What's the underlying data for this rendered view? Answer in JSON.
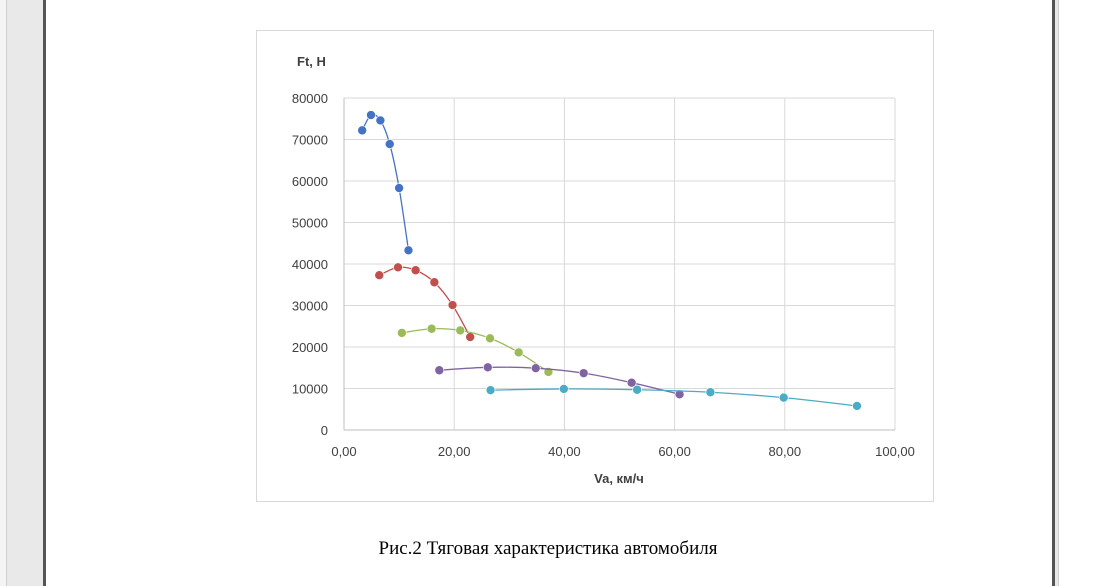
{
  "caption": "Рис.2 Тяговая характеристика автомобиля",
  "chart_data": {
    "type": "scatter",
    "ylabel": "Ft, Н",
    "xlabel": "Va, км/ч",
    "xlim": [
      0,
      100
    ],
    "ylim": [
      0,
      80000
    ],
    "x_ticks": [
      "0,00",
      "20,00",
      "40,00",
      "60,00",
      "80,00",
      "100,00"
    ],
    "y_ticks": [
      "0",
      "10000",
      "20000",
      "30000",
      "40000",
      "50000",
      "60000",
      "70000",
      "80000"
    ],
    "grid": true,
    "legend": "none",
    "series": [
      {
        "color": "#4472C4",
        "x": [
          3.3,
          4.9,
          6.6,
          8.3,
          10.0,
          11.7
        ],
        "y": [
          72200,
          75900,
          74600,
          68900,
          58300,
          43300
        ]
      },
      {
        "color": "#C0504D",
        "x": [
          6.4,
          9.8,
          13.0,
          16.4,
          19.7,
          22.9
        ],
        "y": [
          37300,
          39200,
          38500,
          35600,
          30100,
          22400
        ]
      },
      {
        "color": "#9BBB59",
        "x": [
          10.5,
          15.9,
          21.1,
          26.5,
          31.7,
          37.1
        ],
        "y": [
          23400,
          24400,
          24000,
          22100,
          18700,
          14000
        ]
      },
      {
        "color": "#8064A2",
        "x": [
          17.3,
          26.1,
          34.8,
          43.5,
          52.2,
          60.9
        ],
        "y": [
          14400,
          15100,
          14900,
          13700,
          11400,
          8600
        ]
      },
      {
        "color": "#4BACC6",
        "x": [
          26.6,
          39.9,
          53.2,
          66.5,
          79.8,
          93.1
        ],
        "y": [
          9600,
          9900,
          9700,
          9100,
          7800,
          5800
        ]
      }
    ]
  }
}
